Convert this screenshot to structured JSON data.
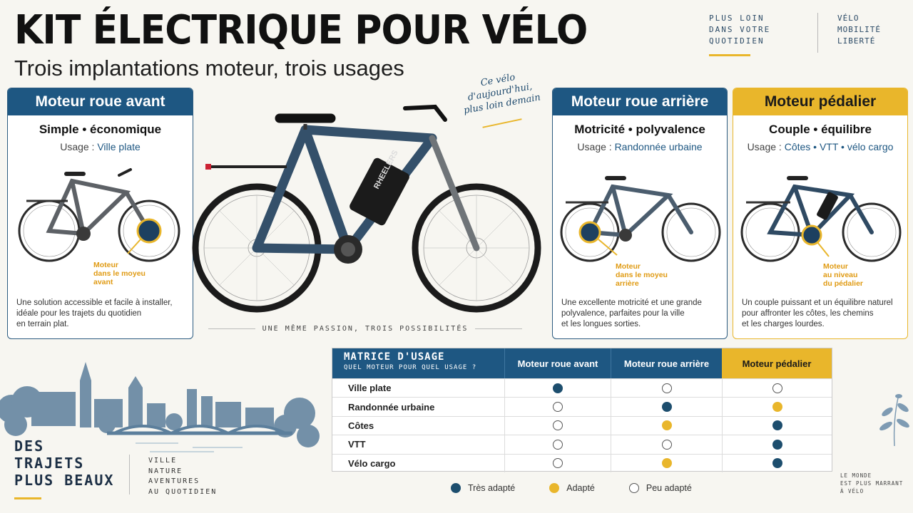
{
  "header": {
    "title": "KIT ÉLECTRIQUE POUR VÉLO",
    "subtitle": "Trois implantations moteur, trois usages",
    "tagline_left": [
      "PLUS LOIN",
      "DANS VOTRE",
      "QUOTIDIEN"
    ],
    "tagline_right": [
      "VÉLO",
      "MOBILITÉ",
      "LIBERTÉ"
    ]
  },
  "colors": {
    "navy": "#1e5782",
    "gold": "#e9b62b",
    "dark_dot": "#1d4e6e",
    "background": "#f7f6f1"
  },
  "cards": {
    "front": {
      "title": "Moteur roue avant",
      "tag_a": "Simple",
      "tag_sep": "•",
      "tag_b": "économique",
      "usage_label": "Usage :",
      "usage_value": "Ville plate",
      "motor_label": [
        "Moteur",
        "dans le moyeu",
        "avant"
      ],
      "description": [
        "Une solution accessible et facile à installer,",
        "idéale pour les trajets du quotidien",
        "en terrain plat."
      ]
    },
    "rear": {
      "title": "Moteur roue arrière",
      "tag_a": "Motricité",
      "tag_sep": "•",
      "tag_b": "polyvalence",
      "usage_label": "Usage :",
      "usage_value": "Randonnée urbaine",
      "motor_label": [
        "Moteur",
        "dans le moyeu",
        "arrière"
      ],
      "description": [
        "Une excellente motricité et une grande",
        "polyvalence, parfaites pour la ville",
        "et les longues sorties."
      ]
    },
    "mid": {
      "title": "Moteur pédalier",
      "tag_a": "Couple",
      "tag_sep": "•",
      "tag_b": "équilibre",
      "usage_label": "Usage :",
      "usage_value": "Côtes • VTT • vélo cargo",
      "motor_label": [
        "Moteur",
        "au niveau",
        "du pédalier"
      ],
      "description": [
        "Un couple puissant et un équilibre naturel",
        "pour affronter les côtes, les chemins",
        "et les charges lourdes."
      ]
    }
  },
  "hero": {
    "handwritten": [
      "Ce vélo",
      "d'aujourd'hui,",
      "plus loin demain"
    ],
    "frame_brand": "RHEELERS",
    "caption": "UNE MÊME PASSION, TROIS POSSIBILITÉS"
  },
  "matrix": {
    "title": "MATRICE D'USAGE",
    "subtitle": "QUEL MOTEUR POUR QUEL USAGE ?",
    "columns": [
      "Moteur roue avant",
      "Moteur roue arrière",
      "Moteur pédalier"
    ],
    "rows": [
      {
        "label": "Ville plate",
        "ratings": [
          "full",
          "none",
          "none"
        ]
      },
      {
        "label": "Randonnée urbaine",
        "ratings": [
          "none",
          "full",
          "half"
        ]
      },
      {
        "label": "Côtes",
        "ratings": [
          "none",
          "half",
          "full"
        ]
      },
      {
        "label": "VTT",
        "ratings": [
          "none",
          "none",
          "full"
        ]
      },
      {
        "label": "Vélo cargo",
        "ratings": [
          "none",
          "half",
          "full"
        ]
      }
    ]
  },
  "legend": {
    "full": "Très adapté",
    "half": "Adapté",
    "none": "Peu adapté"
  },
  "footer": {
    "slogan": [
      "DES",
      "TRAJETS",
      "PLUS BEAUX"
    ],
    "list": [
      "VILLE",
      "NATURE",
      "AVENTURES",
      "AU QUOTIDIEN"
    ],
    "corner": [
      "LE MONDE",
      "EST PLUS MARRANT",
      "À VÉLO"
    ]
  }
}
